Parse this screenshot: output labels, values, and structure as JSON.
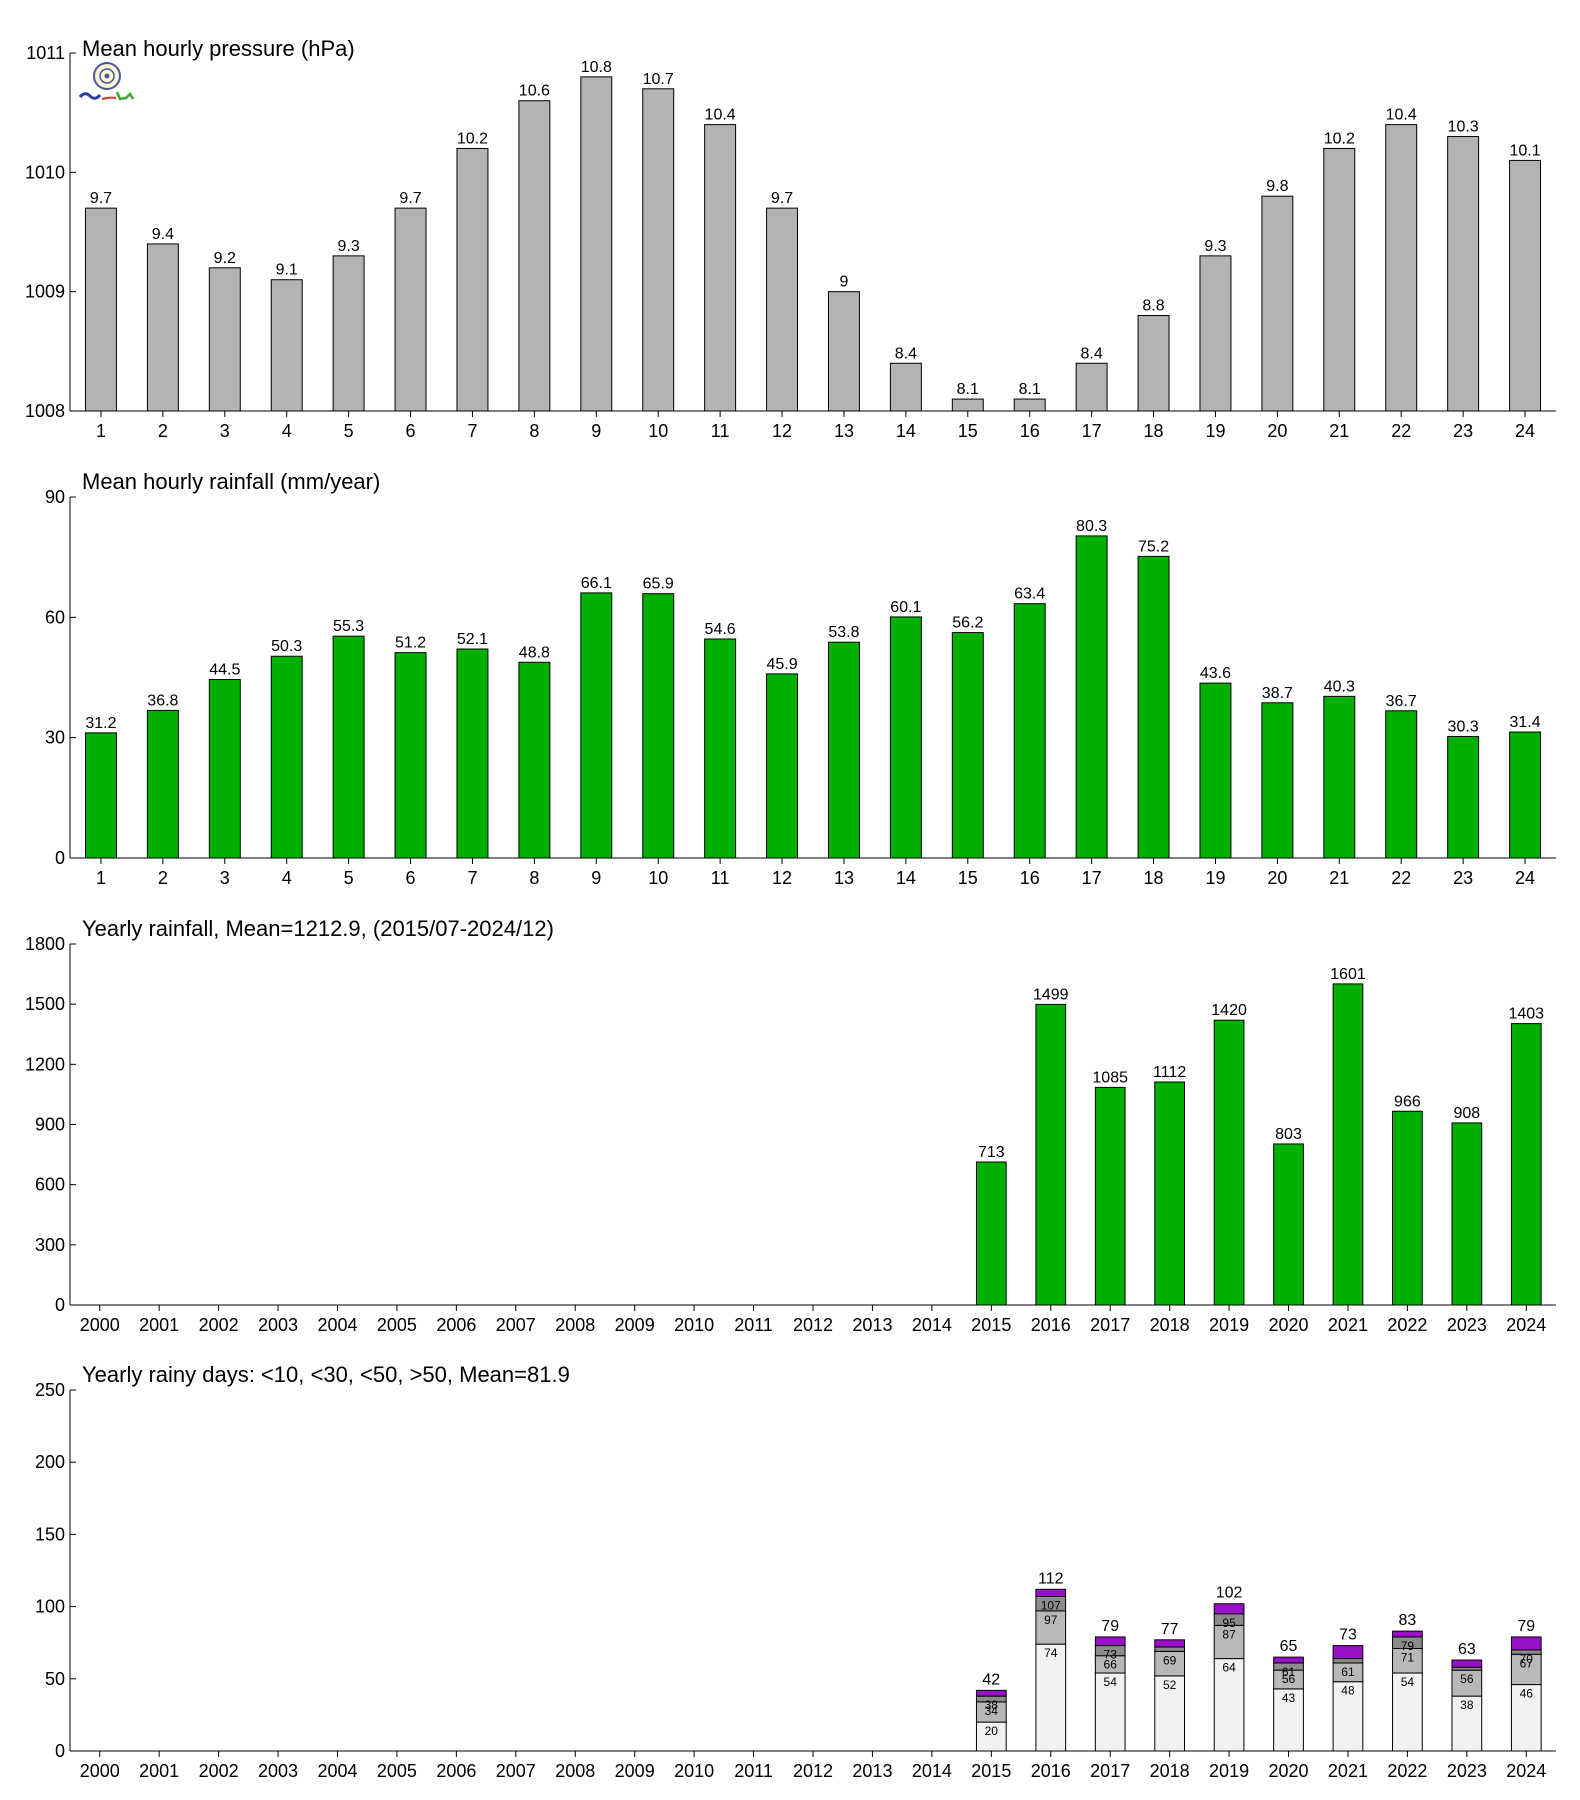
{
  "chart_data": [
    {
      "type": "bar",
      "title": "Mean hourly pressure (hPa)",
      "categories": [
        "1",
        "2",
        "3",
        "4",
        "5",
        "6",
        "7",
        "8",
        "9",
        "10",
        "11",
        "12",
        "13",
        "14",
        "15",
        "16",
        "17",
        "18",
        "19",
        "20",
        "21",
        "22",
        "23",
        "24"
      ],
      "values": [
        1009.7,
        1009.4,
        1009.2,
        1009.1,
        1009.3,
        1009.7,
        1010.2,
        1010.6,
        1010.8,
        1010.7,
        1010.4,
        1009.7,
        1009.0,
        1008.4,
        1008.1,
        1008.1,
        1008.4,
        1008.8,
        1009.3,
        1009.8,
        1010.2,
        1010.4,
        1010.3,
        1010.1
      ],
      "labels": [
        "9.7",
        "9.4",
        "9.2",
        "9.1",
        "9.3",
        "9.7",
        "10.2",
        "10.6",
        "10.8",
        "10.7",
        "10.4",
        "9.7",
        "9",
        "8.4",
        "8.1",
        "8.1",
        "8.4",
        "8.8",
        "9.3",
        "9.8",
        "10.2",
        "10.4",
        "10.3",
        "10.1"
      ],
      "ylim": [
        1008,
        1011
      ],
      "yticks": [
        "1008",
        "1009",
        "1010",
        "1011"
      ],
      "color": "#b3b3b3"
    },
    {
      "type": "bar",
      "title": "Mean hourly rainfall (mm/year)",
      "categories": [
        "1",
        "2",
        "3",
        "4",
        "5",
        "6",
        "7",
        "8",
        "9",
        "10",
        "11",
        "12",
        "13",
        "14",
        "15",
        "16",
        "17",
        "18",
        "19",
        "20",
        "21",
        "22",
        "23",
        "24"
      ],
      "values": [
        31.2,
        36.8,
        44.5,
        50.3,
        55.3,
        51.2,
        52.1,
        48.8,
        66.1,
        65.9,
        54.6,
        45.9,
        53.8,
        60.1,
        56.2,
        63.4,
        80.3,
        75.2,
        43.6,
        38.7,
        40.3,
        36.7,
        30.3,
        31.4
      ],
      "labels": [
        "31.2",
        "36.8",
        "44.5",
        "50.3",
        "55.3",
        "51.2",
        "52.1",
        "48.8",
        "66.1",
        "65.9",
        "54.6",
        "45.9",
        "53.8",
        "60.1",
        "56.2",
        "63.4",
        "80.3",
        "75.2",
        "43.6",
        "38.7",
        "40.3",
        "36.7",
        "30.3",
        "31.4"
      ],
      "ylim": [
        0,
        90
      ],
      "yticks": [
        "0",
        "30",
        "60",
        "90"
      ],
      "color": "#00b000"
    },
    {
      "type": "bar",
      "title": "Yearly rainfall, Mean=1212.9, (2015/07-2024/12)",
      "categories": [
        "2000",
        "2001",
        "2002",
        "2003",
        "2004",
        "2005",
        "2006",
        "2007",
        "2008",
        "2009",
        "2010",
        "2011",
        "2012",
        "2013",
        "2014",
        "2015",
        "2016",
        "2017",
        "2018",
        "2019",
        "2020",
        "2021",
        "2022",
        "2023",
        "2024"
      ],
      "values": [
        null,
        null,
        null,
        null,
        null,
        null,
        null,
        null,
        null,
        null,
        null,
        null,
        null,
        null,
        null,
        713,
        1499,
        1085,
        1112,
        1420,
        803,
        1601,
        966,
        908,
        1403
      ],
      "labels": [
        "",
        "",
        "",
        "",
        "",
        "",
        "",
        "",
        "",
        "",
        "",
        "",
        "",
        "",
        "",
        "713",
        "1499",
        "1085",
        "1112",
        "1420",
        "803",
        "1601",
        "966",
        "908",
        "1403"
      ],
      "ylim": [
        0,
        1800
      ],
      "yticks": [
        "0",
        "300",
        "600",
        "900",
        "1200",
        "1500",
        "1800"
      ],
      "color": "#00b000"
    },
    {
      "type": "bar",
      "stacked": true,
      "title": "Yearly rainy days: <10, <30, <50, >50, Mean=81.9",
      "categories": [
        "2000",
        "2001",
        "2002",
        "2003",
        "2004",
        "2005",
        "2006",
        "2007",
        "2008",
        "2009",
        "2010",
        "2011",
        "2012",
        "2013",
        "2014",
        "2015",
        "2016",
        "2017",
        "2018",
        "2019",
        "2020",
        "2021",
        "2022",
        "2023",
        "2024"
      ],
      "years_with_data": [
        "2015",
        "2016",
        "2017",
        "2018",
        "2019",
        "2020",
        "2021",
        "2022",
        "2023",
        "2024"
      ],
      "cumulative": {
        "lt10": [
          20,
          74,
          54,
          52,
          64,
          43,
          48,
          54,
          38,
          46
        ],
        "lt30": [
          34,
          97,
          66,
          69,
          87,
          56,
          61,
          71,
          56,
          67
        ],
        "lt50": [
          38,
          107,
          73,
          72,
          95,
          61,
          64,
          79,
          58,
          70
        ],
        "total": [
          42,
          112,
          79,
          77,
          102,
          65,
          73,
          83,
          63,
          79
        ]
      },
      "segment_labels": {
        "lt10": [
          "20",
          "74",
          "54",
          "52",
          "64",
          "43",
          "48",
          "54",
          "38",
          "46"
        ],
        "lt30": [
          "34",
          "97",
          "66",
          "69",
          "87",
          "56",
          "61",
          "71",
          "56",
          "67"
        ],
        "lt50": [
          "38",
          "107",
          "73",
          "",
          "95",
          "61",
          "",
          "79",
          "",
          "70"
        ],
        "total": [
          "42",
          "112",
          "79",
          "77",
          "102",
          "65",
          "73",
          "83",
          "63",
          "79"
        ]
      },
      "ylim": [
        0,
        250
      ],
      "yticks": [
        "0",
        "50",
        "100",
        "150",
        "200",
        "250"
      ],
      "colors": {
        "lt10": "#f2f2f2",
        "lt30": "#b8b8b8",
        "lt50": "#8c8c8c",
        "total": "#9a10c8"
      }
    }
  ]
}
